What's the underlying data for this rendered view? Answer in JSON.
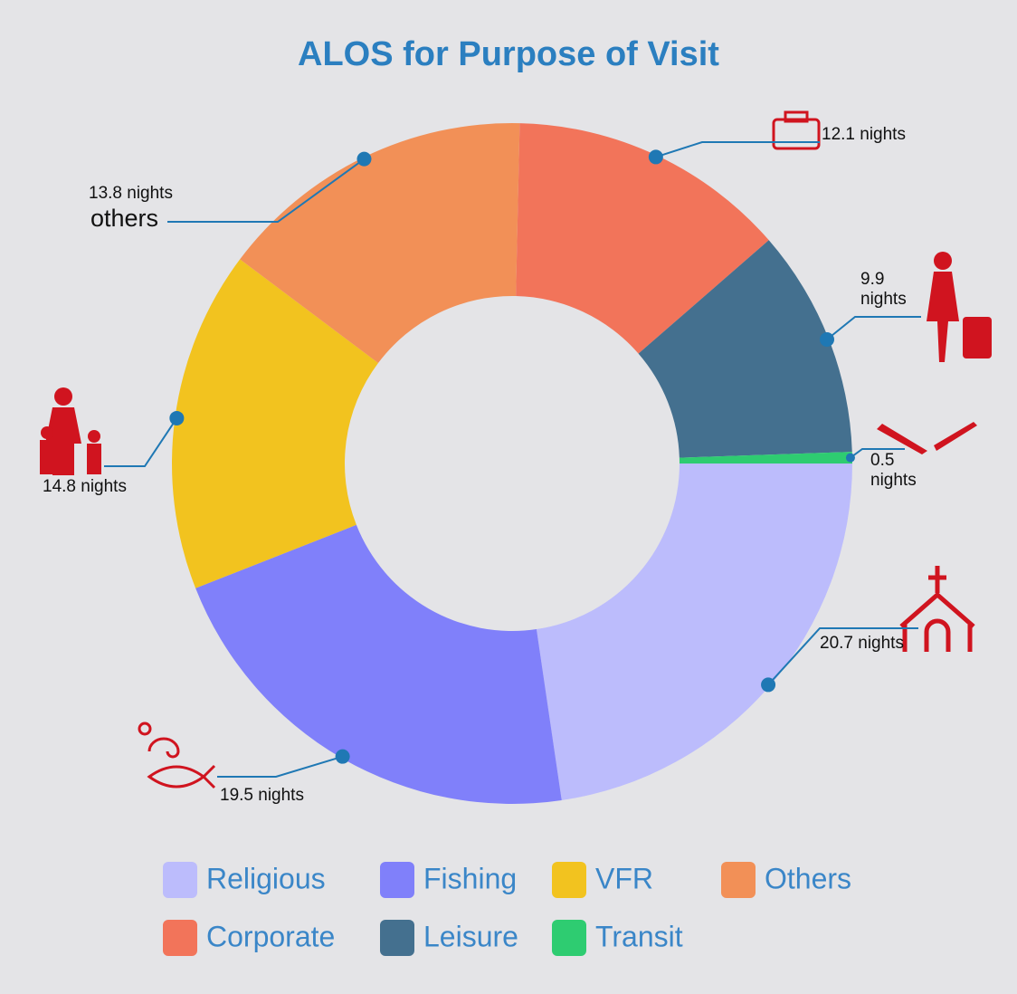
{
  "chart_data": {
    "type": "donut",
    "title": "ALOS for Purpose of Visit",
    "categories": [
      "Religious",
      "Fishing",
      "VFR",
      "Others",
      "Corporate",
      "Leisure",
      "Transit"
    ],
    "values": [
      20.7,
      19.5,
      14.8,
      13.8,
      12.1,
      9.9,
      0.5
    ],
    "value_labels": [
      "20.7 nights",
      "19.5 nights",
      "14.8 nights",
      "13.8 nights",
      "12.1 nights",
      "9.9 nights",
      "0.5 nights"
    ],
    "colors": [
      "#bcbcfc",
      "#8080fa",
      "#f2c31f",
      "#f29057",
      "#f2745a",
      "#44708f",
      "#2ecc71"
    ],
    "annotations": [
      "others"
    ],
    "legend": "bottom"
  }
}
